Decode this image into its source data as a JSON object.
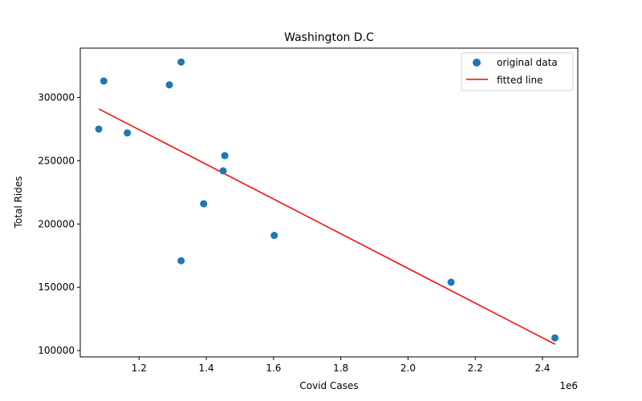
{
  "chart_data": {
    "type": "scatter",
    "title": "Washington D.C",
    "xlabel": "Covid Cases",
    "ylabel": "Total Rides",
    "x_offset_label": "1e6",
    "xlim": [
      1.025,
      2.505
    ],
    "ylim": [
      95000,
      339000
    ],
    "x_ticks": [
      1.2,
      1.4,
      1.6,
      1.8,
      2.0,
      2.2,
      2.4
    ],
    "x_tick_labels": [
      "1.2",
      "1.4",
      "1.6",
      "1.8",
      "2.0",
      "2.2",
      "2.4"
    ],
    "y_ticks": [
      100000,
      150000,
      200000,
      250000,
      300000
    ],
    "y_tick_labels": [
      "100000",
      "150000",
      "200000",
      "250000",
      "300000"
    ],
    "grid": false,
    "legend_position": "top-right",
    "series": [
      {
        "name": "original data",
        "kind": "scatter",
        "color": "#1f77b4",
        "points": [
          [
            1.08,
            275000
          ],
          [
            1.095,
            313000
          ],
          [
            1.165,
            272000
          ],
          [
            1.29,
            310000
          ],
          [
            1.325,
            328000
          ],
          [
            1.325,
            171000
          ],
          [
            1.392,
            216000
          ],
          [
            1.45,
            242000
          ],
          [
            1.455,
            254000
          ],
          [
            1.602,
            191000
          ],
          [
            2.128,
            154000
          ],
          [
            2.437,
            110000
          ]
        ]
      },
      {
        "name": "fitted line",
        "kind": "line",
        "color": "#ff0000",
        "points": [
          [
            1.08,
            291000
          ],
          [
            2.437,
            105000
          ]
        ]
      }
    ]
  }
}
